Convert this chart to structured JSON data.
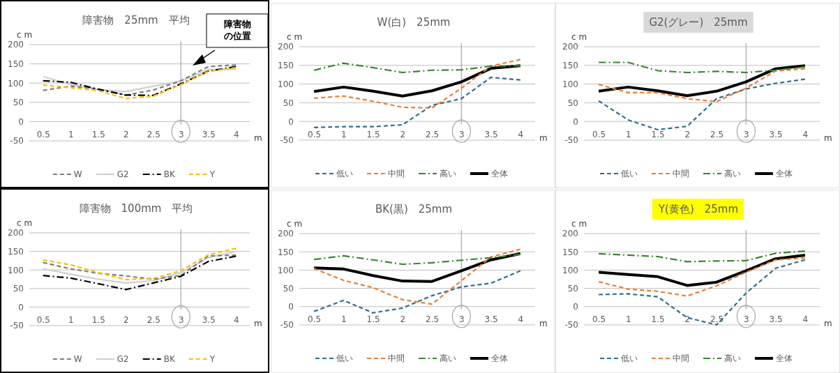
{
  "chart_data": [
    {
      "type": "line",
      "title": "障害物　25mm　平均",
      "ylabel": "c m",
      "xlabel": "m",
      "categories": [
        "0.5",
        "1",
        "1.5",
        "2",
        "2.5",
        "3",
        "3.5",
        "4"
      ],
      "ylim": [
        -50,
        200
      ],
      "yticks": [
        -50,
        0,
        50,
        100,
        150,
        200
      ],
      "grid": "y",
      "legend": "bottom",
      "marker": "none",
      "ref_lines": [
        {
          "axis": "x",
          "value": "3",
          "color": "#a6a6a6"
        }
      ],
      "annotations": [
        "障害物の位置"
      ],
      "series": [
        {
          "name": "W",
          "color": "#7f7f7f",
          "line_style": "dashed",
          "values": [
            81,
            92,
            85,
            69,
            82,
            106,
            143,
            147
          ]
        },
        {
          "name": "G2",
          "color": "#d0d0d0",
          "line_style": "solid",
          "values": [
            117,
            96,
            83,
            78,
            92,
            105,
            135,
            136
          ]
        },
        {
          "name": "BK",
          "color": "#000000",
          "line_style": "dashdot",
          "values": [
            106,
            102,
            84,
            69,
            68,
            98,
            131,
            143
          ]
        },
        {
          "name": "Y",
          "color": "#ffc000",
          "line_style": "dashed",
          "values": [
            95,
            88,
            80,
            60,
            66,
            96,
            130,
            140
          ]
        }
      ]
    },
    {
      "type": "line",
      "title": "障害物　100mm　平均",
      "ylabel": "c m",
      "xlabel": "m",
      "categories": [
        "0.5",
        "1",
        "1.5",
        "2",
        "2.5",
        "3",
        "3.5",
        "4"
      ],
      "ylim": [
        -50,
        200
      ],
      "yticks": [
        -50,
        0,
        50,
        100,
        150,
        200
      ],
      "grid": "y",
      "legend": "bottom",
      "marker": "none",
      "ref_lines": [
        {
          "axis": "x",
          "value": "3",
          "color": "#a6a6a6"
        }
      ],
      "series": [
        {
          "name": "W",
          "color": "#7f7f7f",
          "line_style": "dashed",
          "values": [
            120,
            103,
            91,
            84,
            75,
            85,
            138,
            140
          ]
        },
        {
          "name": "G2",
          "color": "#d0d0d0",
          "line_style": "solid",
          "values": [
            103,
            89,
            75,
            65,
            71,
            93,
            133,
            150
          ]
        },
        {
          "name": "BK",
          "color": "#000000",
          "line_style": "dashdot",
          "values": [
            85,
            78,
            63,
            47,
            65,
            83,
            123,
            137
          ]
        },
        {
          "name": "Y",
          "color": "#ffc000",
          "line_style": "dashed",
          "values": [
            127,
            114,
            93,
            74,
            77,
            98,
            141,
            158
          ]
        }
      ]
    },
    {
      "type": "line",
      "title": "W(白)　25mm",
      "ylabel": "c m",
      "xlabel": "m",
      "categories": [
        "0.5",
        "1",
        "1.5",
        "2",
        "2.5",
        "3",
        "3.5",
        "4"
      ],
      "ylim": [
        -50,
        200
      ],
      "yticks": [
        -50,
        0,
        50,
        100,
        150,
        200
      ],
      "grid": "y",
      "legend": "bottom",
      "marker": "none",
      "ref_lines": [
        {
          "axis": "x",
          "value": "3",
          "color": "#a6a6a6"
        }
      ],
      "series": [
        {
          "name": "低い",
          "color": "#2e6f8e",
          "line_style": "dashed",
          "values": [
            -16,
            -14,
            -14,
            -9,
            43,
            61,
            118,
            111
          ]
        },
        {
          "name": "中間",
          "color": "#ed7d31",
          "line_style": "dashed",
          "values": [
            62,
            68,
            54,
            38,
            36,
            89,
            148,
            166
          ]
        },
        {
          "name": "高い",
          "color": "#38862f",
          "line_style": "dashdot",
          "values": [
            137,
            156,
            144,
            131,
            137,
            138,
            148,
            149
          ]
        },
        {
          "name": "全体",
          "color": "#000000",
          "line_style": "solid",
          "values": [
            80,
            92,
            81,
            68,
            82,
            106,
            142,
            149
          ]
        }
      ]
    },
    {
      "type": "line",
      "title": "G2(グレー)　25mm",
      "ylabel": "c m",
      "xlabel": "m",
      "categories": [
        "0.5",
        "1",
        "1.5",
        "2",
        "2.5",
        "3",
        "3.5",
        "4"
      ],
      "ylim": [
        -50,
        200
      ],
      "yticks": [
        -50,
        0,
        50,
        100,
        150,
        200
      ],
      "grid": "y",
      "legend": "bottom",
      "marker": "none",
      "ref_lines": [
        {
          "axis": "x",
          "value": "3",
          "color": "#a6a6a6"
        }
      ],
      "series": [
        {
          "name": "低い",
          "color": "#2e6f8e",
          "line_style": "dashed",
          "values": [
            55,
            4,
            -22,
            -13,
            61,
            87,
            102,
            113
          ]
        },
        {
          "name": "中間",
          "color": "#ed7d31",
          "line_style": "dashed",
          "values": [
            99,
            77,
            77,
            61,
            53,
            89,
            135,
            141
          ]
        },
        {
          "name": "高い",
          "color": "#38862f",
          "line_style": "dashdot",
          "values": [
            158,
            158,
            136,
            131,
            134,
            131,
            137,
            146
          ]
        },
        {
          "name": "全体",
          "color": "#000000",
          "line_style": "solid",
          "values": [
            81,
            92,
            82,
            69,
            81,
            106,
            141,
            149
          ]
        }
      ]
    },
    {
      "type": "line",
      "title": "BK(黒)　25mm",
      "ylabel": "c m",
      "xlabel": "m",
      "categories": [
        "0.5",
        "1",
        "1.5",
        "2",
        "2.5",
        "3",
        "3.5",
        "4"
      ],
      "ylim": [
        -50,
        200
      ],
      "yticks": [
        -50,
        0,
        50,
        100,
        150,
        200
      ],
      "grid": "y",
      "legend": "bottom",
      "marker": "none",
      "ref_lines": [
        {
          "axis": "x",
          "value": "3",
          "color": "#a6a6a6"
        }
      ],
      "series": [
        {
          "name": "低い",
          "color": "#2e6f8e",
          "line_style": "dashed",
          "values": [
            -13,
            17,
            -17,
            -4,
            30,
            54,
            64,
            98
          ]
        },
        {
          "name": "中間",
          "color": "#ed7d31",
          "line_style": "dashed",
          "values": [
            104,
            72,
            52,
            19,
            7,
            71,
            136,
            157
          ]
        },
        {
          "name": "高い",
          "color": "#38862f",
          "line_style": "dashdot",
          "values": [
            129,
            139,
            128,
            116,
            120,
            127,
            134,
            143
          ]
        },
        {
          "name": "全体",
          "color": "#000000",
          "line_style": "solid",
          "values": [
            106,
            103,
            85,
            70,
            69,
            98,
            128,
            145
          ]
        }
      ]
    },
    {
      "type": "line",
      "title": "Y(黄色)　25mm",
      "ylabel": "c m",
      "xlabel": "m",
      "categories": [
        "0.5",
        "1",
        "1.5",
        "2",
        "2.5",
        "3",
        "3.5",
        "4"
      ],
      "ylim": [
        -50,
        200
      ],
      "yticks": [
        -50,
        0,
        50,
        100,
        150,
        200
      ],
      "grid": "y",
      "legend": "bottom",
      "marker": "none",
      "ref_lines": [
        {
          "axis": "x",
          "value": "3",
          "color": "#a6a6a6"
        }
      ],
      "series": [
        {
          "name": "低い",
          "color": "#2e6f8e",
          "line_style": "dashed",
          "values": [
            33,
            35,
            27,
            -30,
            -50,
            37,
            105,
            128
          ]
        },
        {
          "name": "中間",
          "color": "#ed7d31",
          "line_style": "dashed",
          "values": [
            68,
            48,
            42,
            29,
            57,
            94,
            128,
            133
          ]
        },
        {
          "name": "高い",
          "color": "#38862f",
          "line_style": "dashdot",
          "values": [
            145,
            141,
            137,
            123,
            125,
            126,
            146,
            152
          ]
        },
        {
          "name": "全体",
          "color": "#000000",
          "line_style": "solid",
          "values": [
            94,
            88,
            82,
            58,
            67,
            98,
            131,
            141
          ]
        }
      ]
    }
  ]
}
